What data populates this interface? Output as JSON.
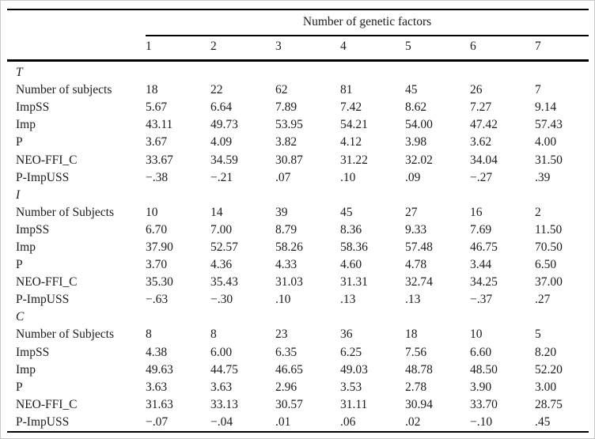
{
  "table": {
    "spanner": "Number of genetic factors",
    "columns": [
      "1",
      "2",
      "3",
      "4",
      "5",
      "6",
      "7"
    ],
    "sections": [
      {
        "label": "T",
        "rows": [
          {
            "label": "Number of subjects",
            "values": [
              "18",
              "22",
              "62",
              "81",
              "45",
              "26",
              "7"
            ]
          },
          {
            "label": "ImpSS",
            "values": [
              "5.67",
              "6.64",
              "7.89",
              "7.42",
              "8.62",
              "7.27",
              "9.14"
            ]
          },
          {
            "label": "Imp",
            "values": [
              "43.11",
              "49.73",
              "53.95",
              "54.21",
              "54.00",
              "47.42",
              "57.43"
            ]
          },
          {
            "label": "P",
            "values": [
              "3.67",
              "4.09",
              "3.82",
              "4.12",
              "3.98",
              "3.62",
              "4.00"
            ]
          },
          {
            "label": "NEO-FFI_C",
            "values": [
              "33.67",
              "34.59",
              "30.87",
              "31.22",
              "32.02",
              "34.04",
              "31.50"
            ]
          },
          {
            "label": "P-ImpUSS",
            "values": [
              "−.38",
              "−.21",
              ".07",
              ".10",
              ".09",
              "−.27",
              ".39"
            ]
          }
        ]
      },
      {
        "label": "I",
        "rows": [
          {
            "label": "Number of Subjects",
            "values": [
              "10",
              "14",
              "39",
              "45",
              "27",
              "16",
              "2"
            ]
          },
          {
            "label": "ImpSS",
            "values": [
              "6.70",
              "7.00",
              "8.79",
              "8.36",
              "9.33",
              "7.69",
              "11.50"
            ]
          },
          {
            "label": "Imp",
            "values": [
              "37.90",
              "52.57",
              "58.26",
              "58.36",
              "57.48",
              "46.75",
              "70.50"
            ]
          },
          {
            "label": "P",
            "values": [
              "3.70",
              "4.36",
              "4.33",
              "4.60",
              "4.78",
              "3.44",
              "6.50"
            ]
          },
          {
            "label": "NEO-FFI_C",
            "values": [
              "35.30",
              "35.43",
              "31.03",
              "31.31",
              "32.74",
              "34.25",
              "37.00"
            ]
          },
          {
            "label": "P-ImpUSS",
            "values": [
              "−.63",
              "−.30",
              ".10",
              ".13",
              ".13",
              "−.37",
              ".27"
            ]
          }
        ]
      },
      {
        "label": "C",
        "rows": [
          {
            "label": "Number of Subjects",
            "values": [
              "8",
              "8",
              "23",
              "36",
              "18",
              "10",
              "5"
            ]
          },
          {
            "label": "ImpSS",
            "values": [
              "4.38",
              "6.00",
              "6.35",
              "6.25",
              "7.56",
              "6.60",
              "8.20"
            ]
          },
          {
            "label": "Imp",
            "values": [
              "49.63",
              "44.75",
              "46.65",
              "49.03",
              "48.78",
              "48.50",
              "52.20"
            ]
          },
          {
            "label": "P",
            "values": [
              "3.63",
              "3.63",
              "2.96",
              "3.53",
              "2.78",
              "3.90",
              "3.00"
            ]
          },
          {
            "label": "NEO-FFI_C",
            "values": [
              "31.63",
              "33.13",
              "30.57",
              "31.11",
              "30.94",
              "33.70",
              "28.75"
            ]
          },
          {
            "label": "P-ImpUSS",
            "values": [
              "−.07",
              "−.04",
              ".01",
              ".06",
              ".02",
              "−.10",
              ".45"
            ]
          }
        ]
      }
    ]
  }
}
